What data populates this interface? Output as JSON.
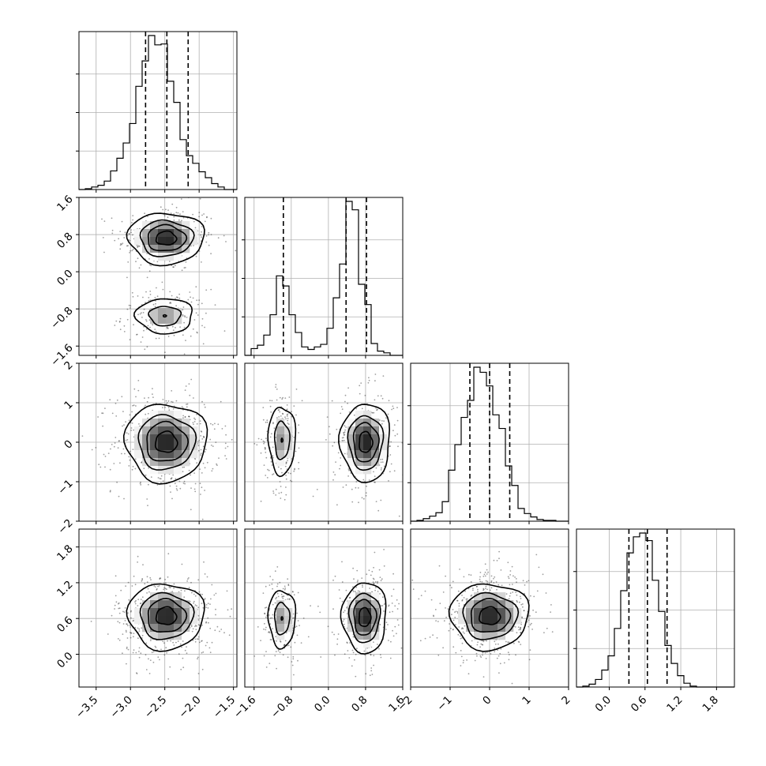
{
  "chart_data": {
    "type": "corner",
    "parameters": [
      {
        "ticks": [
          -3.5,
          -3.0,
          -2.5,
          -2.0,
          -1.5
        ],
        "tick_labels": [
          "−3.5",
          "−3.0",
          "−2.5",
          "−2.0",
          "−1.5"
        ],
        "range": [
          -3.75,
          -1.45
        ]
      },
      {
        "ticks": [
          -1.6,
          -0.8,
          0.0,
          0.8,
          1.6
        ],
        "tick_labels": [
          "−1.6",
          "−0.8",
          "0.0",
          "0.8",
          "1.6"
        ],
        "range": [
          -1.8,
          1.6
        ]
      },
      {
        "ticks": [
          -2,
          -1,
          0,
          1,
          2
        ],
        "tick_labels": [
          "−2",
          "−1",
          "0",
          "1",
          "2"
        ],
        "range": [
          -2,
          2
        ]
      },
      {
        "ticks": [
          0.0,
          0.6,
          1.2,
          1.8
        ],
        "tick_labels": [
          "0.0",
          "0.6",
          "1.2",
          "1.8"
        ],
        "range": [
          -0.55,
          2.1
        ]
      }
    ],
    "histograms": [
      {
        "bin_edges": [
          -3.75,
          -3.658,
          -3.566,
          -3.474,
          -3.382,
          -3.29,
          -3.198,
          -3.106,
          -3.014,
          -2.922,
          -2.83,
          -2.738,
          -2.646,
          -2.554,
          -2.462,
          -2.37,
          -2.278,
          -2.186,
          -2.094,
          -2.002,
          -1.91,
          -1.818,
          -1.726,
          -1.634,
          -1.542,
          -1.45
        ],
        "counts": [
          0,
          1,
          3,
          5,
          10,
          22,
          37,
          55,
          78,
          122,
          152,
          182,
          171,
          172,
          128,
          103,
          59,
          40,
          31,
          21,
          14,
          7,
          3,
          0,
          0
        ],
        "quantiles": [
          -2.78,
          -2.47,
          -2.16
        ]
      },
      {
        "bin_edges": [
          -1.8,
          -1.664,
          -1.528,
          -1.392,
          -1.256,
          -1.12,
          -0.984,
          -0.848,
          -0.712,
          -0.576,
          -0.44,
          -0.304,
          -0.168,
          -0.032,
          0.104,
          0.24,
          0.376,
          0.512,
          0.648,
          0.784,
          0.92,
          1.056,
          1.192,
          1.328,
          1.464,
          1.6
        ],
        "counts": [
          0,
          8,
          12,
          24,
          48,
          94,
          82,
          48,
          27,
          10,
          7,
          10,
          13,
          32,
          68,
          108,
          182,
          172,
          84,
          60,
          14,
          5,
          3,
          0,
          0
        ],
        "quantiles": [
          -0.97,
          0.38,
          0.82
        ]
      },
      {
        "bin_edges": [
          -2.0,
          -1.84,
          -1.68,
          -1.52,
          -1.36,
          -1.2,
          -1.04,
          -0.88,
          -0.72,
          -0.56,
          -0.4,
          -0.24,
          -0.08,
          0.08,
          0.24,
          0.4,
          0.56,
          0.72,
          0.88,
          1.04,
          1.2,
          1.36,
          1.52,
          1.68,
          1.84,
          2.0
        ],
        "counts": [
          0,
          1,
          3,
          6,
          10,
          23,
          60,
          90,
          122,
          142,
          181,
          175,
          159,
          125,
          109,
          65,
          42,
          15,
          9,
          5,
          2,
          1,
          1,
          0,
          0
        ],
        "quantiles": [
          -0.5,
          0.0,
          0.51
        ]
      },
      {
        "bin_edges": [
          -0.55,
          -0.444,
          -0.338,
          -0.232,
          -0.126,
          -0.02,
          0.086,
          0.192,
          0.298,
          0.404,
          0.51,
          0.616,
          0.722,
          0.828,
          0.934,
          1.04,
          1.146,
          1.252,
          1.358,
          1.464,
          1.57,
          1.676,
          1.782,
          1.888,
          1.994,
          2.1
        ],
        "counts": [
          0,
          1,
          3,
          8,
          18,
          33,
          62,
          102,
          142,
          159,
          163,
          155,
          113,
          80,
          44,
          25,
          12,
          4,
          1,
          0,
          0,
          0,
          0,
          0,
          0
        ],
        "quantiles": [
          0.33,
          0.64,
          0.97
        ]
      }
    ],
    "pairs": [
      {
        "row": 1,
        "col": 0,
        "clusters": [
          {
            "center": [
              -2.48,
              0.72
            ],
            "widths": [
              0.28,
              0.28
            ],
            "weight": 0.62
          },
          {
            "center": [
              -2.5,
              -0.95
            ],
            "widths": [
              0.24,
              0.22
            ],
            "weight": 0.38
          }
        ]
      },
      {
        "row": 2,
        "col": 0,
        "clusters": [
          {
            "center": [
              -2.48,
              0.0
            ],
            "widths": [
              0.3,
              0.5
            ],
            "weight": 1.0
          }
        ]
      },
      {
        "row": 2,
        "col": 1,
        "clusters": [
          {
            "center": [
              -1.0,
              0.05
            ],
            "widths": [
              0.17,
              0.5
            ],
            "weight": 0.38
          },
          {
            "center": [
              0.8,
              0.0
            ],
            "widths": [
              0.27,
              0.5
            ],
            "weight": 0.62
          }
        ]
      },
      {
        "row": 3,
        "col": 0,
        "clusters": [
          {
            "center": [
              -2.48,
              0.64
            ],
            "widths": [
              0.28,
              0.28
            ],
            "weight": 1.0
          }
        ]
      },
      {
        "row": 3,
        "col": 1,
        "clusters": [
          {
            "center": [
              -1.0,
              0.6
            ],
            "widths": [
              0.17,
              0.28
            ],
            "weight": 0.38
          },
          {
            "center": [
              0.78,
              0.62
            ],
            "widths": [
              0.24,
              0.3
            ],
            "weight": 0.62
          }
        ]
      },
      {
        "row": 3,
        "col": 2,
        "clusters": [
          {
            "center": [
              0.0,
              0.64
            ],
            "widths": [
              0.5,
              0.28
            ],
            "weight": 1.0
          }
        ]
      }
    ],
    "grid": true,
    "sample_color": "#808080",
    "line_color": "#000000"
  }
}
